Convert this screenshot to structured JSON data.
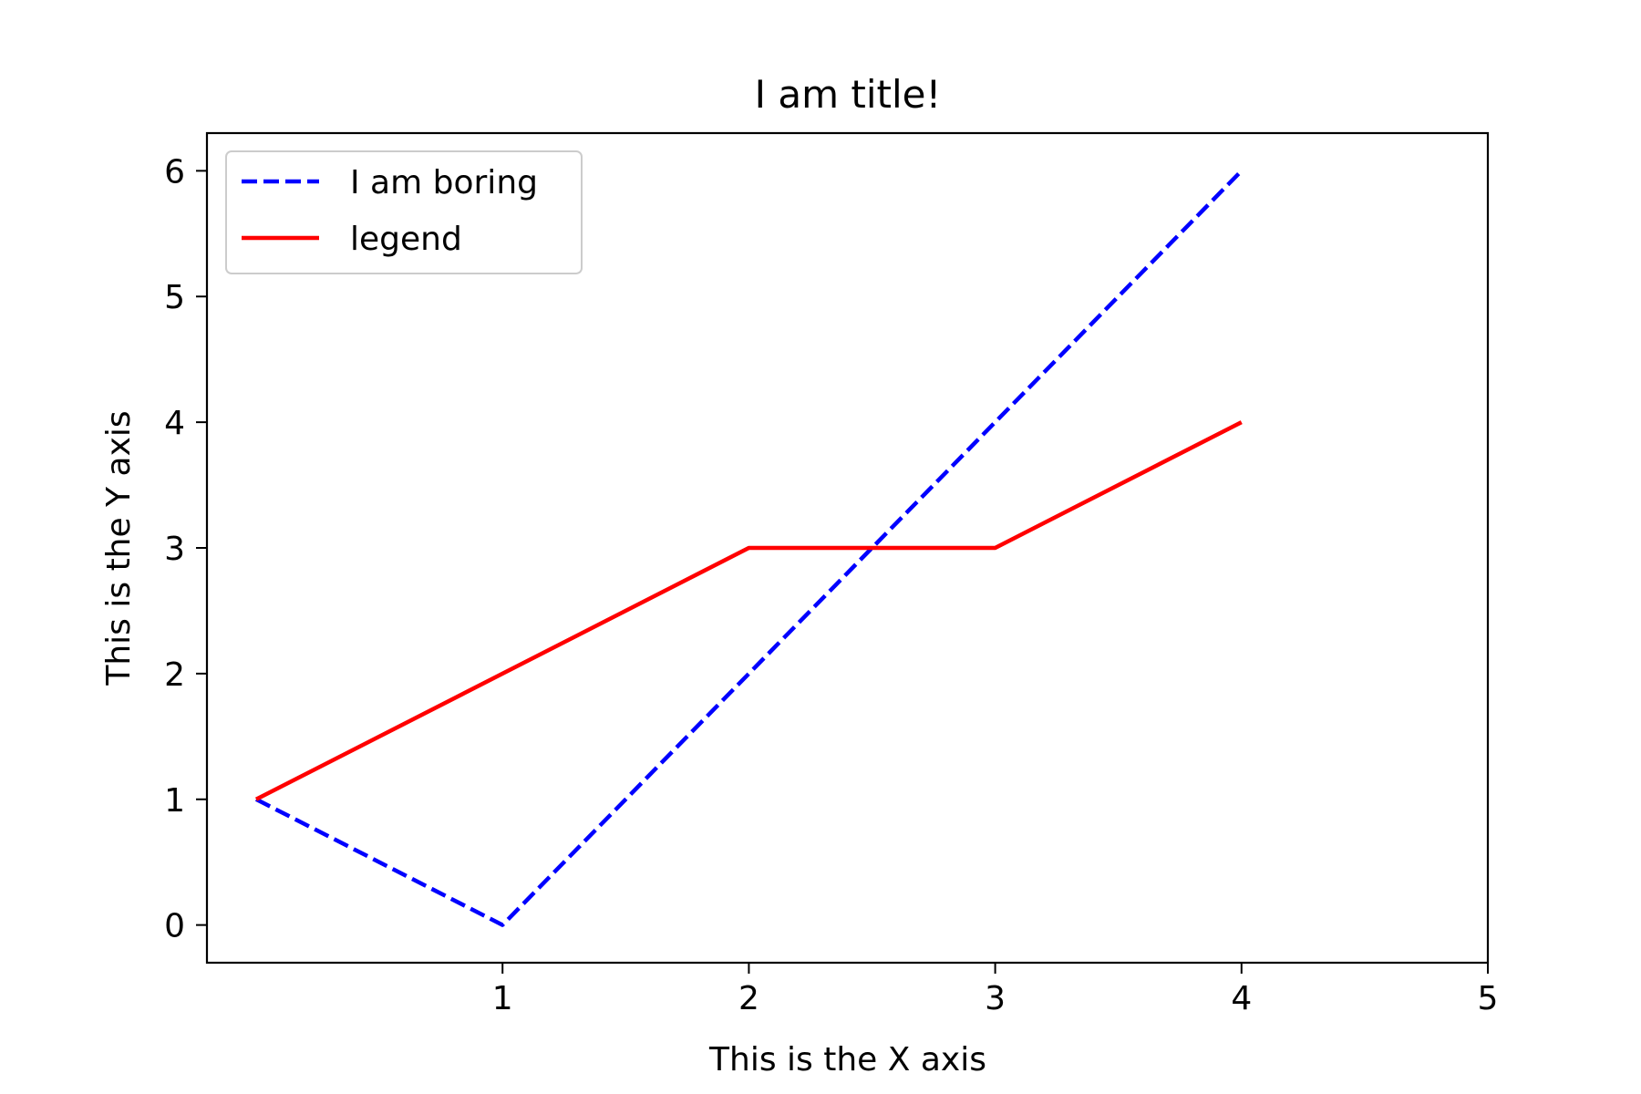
{
  "chart_data": {
    "type": "line",
    "title": "I am title!",
    "xlabel": "This is the X axis",
    "ylabel": "This is the Y axis",
    "xlim": [
      -0.2,
      5
    ],
    "ylim": [
      -0.3,
      6.3
    ],
    "xticks": [
      1,
      2,
      3,
      4,
      5
    ],
    "yticks": [
      0,
      1,
      2,
      3,
      4,
      5,
      6
    ],
    "grid": false,
    "legend_position": "top-left",
    "series": [
      {
        "name": "I am boring",
        "x": [
          0,
          1,
          2,
          3,
          4
        ],
        "y": [
          1,
          0,
          2,
          4,
          6
        ],
        "color": "#0000ff",
        "linestyle": "dashed"
      },
      {
        "name": "legend",
        "x": [
          0,
          1,
          2,
          3,
          4
        ],
        "y": [
          1,
          2,
          3,
          3,
          4
        ],
        "color": "#ff0000",
        "linestyle": "solid"
      }
    ]
  }
}
